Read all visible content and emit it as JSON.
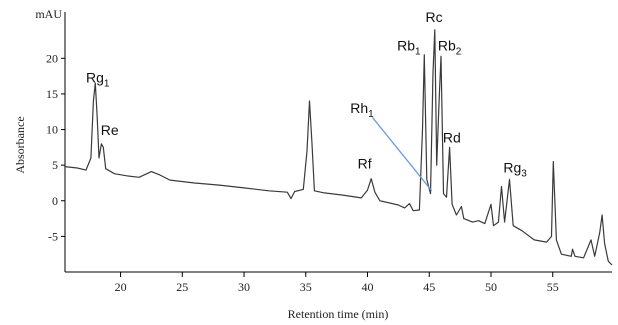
{
  "chart_data": {
    "type": "line",
    "y_unit": "mAU",
    "xlabel": "Retention time (min)",
    "ylabel": "Absorbance",
    "xlim": [
      15.5,
      59.8
    ],
    "ylim": [
      -10,
      26.5
    ],
    "xticks": [
      20,
      25,
      30,
      35,
      40,
      45,
      50,
      55
    ],
    "yticks": [
      -5,
      0,
      5,
      10,
      15,
      20
    ],
    "grid": false,
    "x": [
      15.5,
      16.5,
      17.2,
      17.6,
      17.8,
      17.95,
      18.1,
      18.25,
      18.45,
      18.6,
      18.8,
      19.5,
      20.5,
      21.5,
      22.5,
      23.2,
      24,
      26,
      28,
      30,
      32,
      33.5,
      33.8,
      34.1,
      34.8,
      35.1,
      35.3,
      35.5,
      35.7,
      36.5,
      38,
      39.5,
      40,
      40.3,
      40.6,
      41,
      42.5,
      43,
      43.4,
      43.7,
      44.2,
      44.45,
      44.6,
      44.8,
      45.1,
      45.3,
      45.45,
      45.6,
      45.8,
      45.95,
      46.15,
      46.4,
      46.65,
      46.85,
      47.2,
      47.6,
      47.8,
      48.5,
      49,
      49.5,
      50,
      50.2,
      50.6,
      50.85,
      51.1,
      51.5,
      51.8,
      52.5,
      53.5,
      54.5,
      54.9,
      55.05,
      55.3,
      55.7,
      56.5,
      56.6,
      56.8,
      57.5,
      58.1,
      58.4,
      58.8,
      59,
      59.2,
      59.5,
      59.8
    ],
    "series": [
      {
        "color": "#3a3a3a",
        "values": [
          4.8,
          4.6,
          4.3,
          6,
          14,
          16.5,
          12,
          6,
          8,
          7.5,
          4.5,
          3.8,
          3.5,
          3.3,
          4.1,
          3.6,
          2.9,
          2.5,
          2.2,
          1.8,
          1.4,
          1.2,
          0.3,
          1.3,
          1.6,
          7,
          14,
          8,
          1.4,
          1.1,
          0.8,
          0.4,
          1.5,
          3.1,
          1.2,
          0,
          -0.6,
          -1,
          -0.4,
          -1.4,
          -1.3,
          10,
          20.5,
          3,
          1,
          18,
          24,
          5,
          14,
          20.3,
          1,
          0.5,
          7.5,
          -0.5,
          -2,
          -0.8,
          -2.5,
          -3,
          -2.8,
          -3.2,
          -0.5,
          -3.5,
          -3,
          2,
          -3,
          3,
          -3.5,
          -4.2,
          -5.5,
          -5.8,
          -5,
          5.5,
          -5.5,
          -7.5,
          -7.8,
          -6.8,
          -7.8,
          -8,
          -5.5,
          -7.8,
          -4.5,
          -2,
          -6,
          -8.5,
          -9
        ]
      }
    ],
    "annotations": [
      {
        "text": "Rg",
        "sub": "1",
        "x": 17.2,
        "y": 16.6
      },
      {
        "text": "Re",
        "x": 18.4,
        "y": 9.2
      },
      {
        "text": "Rf",
        "x": 39.2,
        "y": 4.5
      },
      {
        "text": "Rh",
        "sub": "1",
        "x": 38.6,
        "y": 12.3
      },
      {
        "text": "Rb",
        "sub": "1",
        "x": 42.4,
        "y": 21.1
      },
      {
        "text": "Rc",
        "x": 44.7,
        "y": 25.1
      },
      {
        "text": "Rb",
        "sub": "2",
        "x": 45.7,
        "y": 21.1
      },
      {
        "text": "Rd",
        "x": 46.1,
        "y": 8.2
      },
      {
        "text": "Rg",
        "sub": "3",
        "x": 51.0,
        "y": 4.0
      }
    ],
    "leader": {
      "color": "#6a9bd1",
      "x": [
        40.4,
        45.2
      ],
      "y": [
        11.7,
        1.4
      ]
    }
  }
}
